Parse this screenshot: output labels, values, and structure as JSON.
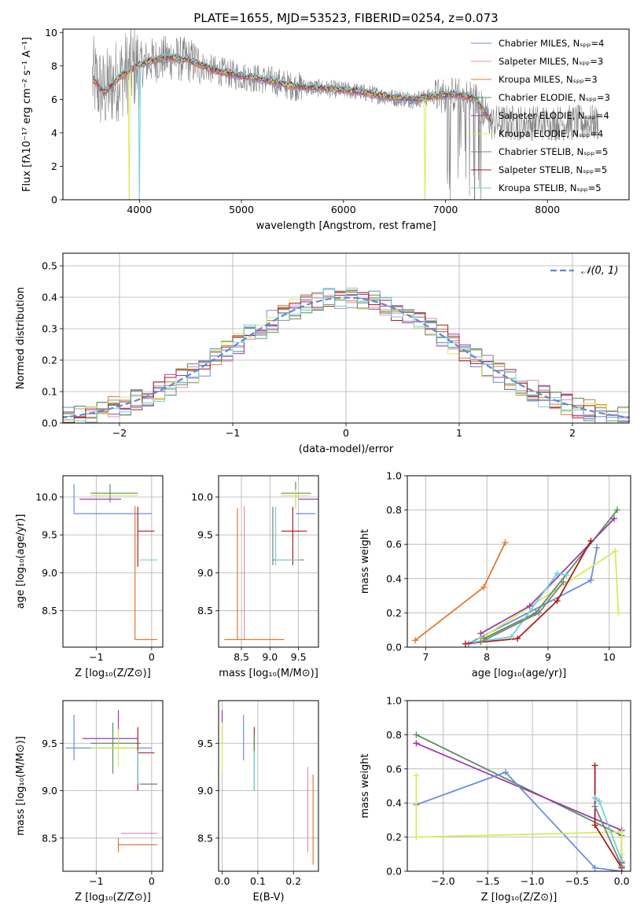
{
  "figure": {
    "title": "PLATE=1655, MJD=53523, FIBERID=0254, z=0.073"
  },
  "colors": {
    "blue": "#6a8fd9",
    "pink": "#e08cc0",
    "orange": "#e07a2e",
    "green": "#5a8f5a",
    "purple": "#a03ab0",
    "yellow": "#d7ea5a",
    "gray": "#7f7f7f",
    "red": "#aa1e1e",
    "cyan": "#6fd0d8",
    "spectrum": "#808080",
    "normal": "#5b8bd6"
  },
  "chart_data": [
    {
      "id": "spectrum",
      "type": "line",
      "xlabel": "wavelength [Angstrom, rest frame]",
      "ylabel": "Flux [fλ10⁻¹⁷ erg cm⁻² s⁻¹ A⁻¹]",
      "xlim": [
        3250,
        8800
      ],
      "ylim": [
        0,
        10.2
      ],
      "xticks": [
        "4000",
        "5000",
        "6000",
        "7000",
        "8000"
      ],
      "yticks": [
        "0",
        "2",
        "4",
        "6",
        "8",
        "10"
      ],
      "grid": false,
      "legend_position": "top-right",
      "legend": [
        "Chabrier MILES, Nₛₚₚ=4",
        "Salpeter MILES, Nₛₚₚ=3",
        "Kroupa MILES, Nₛₚₚ=3",
        "Chabrier ELODIE, Nₛₚₚ=3",
        "Salpeter ELODIE, Nₛₚₚ=4",
        "Kroupa ELODIE, Nₛₚₚ=4",
        "Chabrier STELIB, Nₛₚₚ=5",
        "Salpeter STELIB, Nₛₚₚ=5",
        "Kroupa STELIB, Nₛₚₚ=5"
      ],
      "model_continuum": {
        "x": [
          3550,
          3650,
          3800,
          3950,
          4100,
          4300,
          4500,
          4700,
          4900,
          5100,
          5300,
          5500,
          5700,
          5900,
          6100,
          6300,
          6500,
          6700,
          6900,
          7100,
          7300,
          7450
        ],
        "y": [
          7.2,
          6.4,
          7.3,
          7.9,
          8.3,
          8.5,
          8.3,
          7.8,
          7.5,
          7.3,
          7.1,
          6.8,
          6.7,
          6.6,
          6.5,
          6.3,
          6.1,
          6.0,
          6.2,
          6.3,
          6.0,
          4.6
        ]
      }
    },
    {
      "id": "residuals",
      "type": "histogram",
      "xlabel": "(data-model)/error",
      "ylabel": "Normed distribution",
      "xlim": [
        -2.5,
        2.5
      ],
      "ylim": [
        0,
        0.54
      ],
      "xticks": [
        "−2",
        "−1",
        "0",
        "1",
        "2"
      ],
      "yticks": [
        "0.0",
        "0.1",
        "0.2",
        "0.3",
        "0.4",
        "0.5"
      ],
      "grid": true,
      "legend_position": "top-right",
      "legend": [
        "𝒩(0, 1)"
      ],
      "bin_width": 0.1
    },
    {
      "id": "age_vs_Z",
      "type": "scatter",
      "xlabel": "Z [log₁₀(Z/Z⊙)]",
      "ylabel": "age  [log₁₀(age/yr)]",
      "xlim": [
        -1.6,
        0.2
      ],
      "ylim": [
        8.02,
        10.28
      ],
      "xticks": [
        "−1",
        "0"
      ],
      "yticks": [
        "8.5",
        "9.0",
        "9.5",
        "10.0"
      ],
      "grid": true,
      "points": [
        {
          "c": "blue",
          "x": -1.4,
          "xl": -1.4,
          "xh": 0.0,
          "y": 9.78,
          "yl": 9.78,
          "yh": 10.17
        },
        {
          "c": "purple",
          "x": -0.9,
          "xl": -1.3,
          "xh": -0.55,
          "y": 9.97,
          "yl": 9.97,
          "yh": 9.97
        },
        {
          "c": "green",
          "x": -0.75,
          "xl": -1.1,
          "xh": -0.25,
          "y": 10.05,
          "yl": 9.93,
          "yh": 10.17
        },
        {
          "c": "yellow",
          "x": -0.75,
          "xl": -1.1,
          "xh": -0.25,
          "y": 10.02,
          "yl": 10.02,
          "yh": 10.02
        },
        {
          "c": "red",
          "x": -0.25,
          "xl": -0.25,
          "xh": 0.05,
          "y": 9.55,
          "yl": 9.08,
          "yh": 9.87
        },
        {
          "c": "cyan",
          "x": -0.22,
          "xl": -0.22,
          "xh": 0.1,
          "y": 9.17,
          "yl": 9.17,
          "yh": 9.17
        },
        {
          "c": "orange",
          "x": -0.3,
          "xl": -0.3,
          "xh": 0.1,
          "y": 8.12,
          "yl": 8.12,
          "yh": 9.88
        }
      ]
    },
    {
      "id": "age_vs_mass",
      "type": "scatter",
      "xlabel": "mass [log₁₀(M/M⊙)]",
      "ylabel": "",
      "xlim": [
        8.1,
        9.85
      ],
      "ylim": [
        8.02,
        10.28
      ],
      "xticks": [
        "8.5",
        "9.0",
        "9.5"
      ],
      "yticks": [
        "8.5",
        "9.0",
        "9.5",
        "10.0"
      ],
      "grid": true,
      "points": [
        {
          "c": "blue",
          "x": 9.45,
          "xl": 9.45,
          "xh": 9.8,
          "y": 9.78,
          "yl": 9.78,
          "yh": 9.78
        },
        {
          "c": "purple",
          "x": 9.55,
          "xl": 9.5,
          "xh": 9.85,
          "y": 9.97,
          "yl": 9.97,
          "yh": 9.97
        },
        {
          "c": "green",
          "x": 9.45,
          "xl": 9.2,
          "xh": 9.72,
          "y": 10.05,
          "yl": 9.85,
          "yh": 10.2
        },
        {
          "c": "yellow",
          "x": 9.45,
          "xl": 9.2,
          "xh": 9.7,
          "y": 10.02,
          "yl": 9.85,
          "yh": 10.1
        },
        {
          "c": "gray",
          "x": 9.05,
          "xl": 9.05,
          "xh": 9.6,
          "y": 9.17,
          "yl": 9.1,
          "yh": 9.87
        },
        {
          "c": "red",
          "x": 9.4,
          "xl": 9.2,
          "xh": 9.65,
          "y": 9.55,
          "yl": 9.1,
          "yh": 9.87
        },
        {
          "c": "cyan",
          "x": 9.1,
          "xl": 9.1,
          "xh": 9.52,
          "y": 9.17,
          "yl": 9.1,
          "yh": 9.87
        },
        {
          "c": "pink",
          "x": 8.55,
          "xl": 8.55,
          "xh": 8.55,
          "y": 9.85,
          "yl": 8.12,
          "yh": 9.88
        },
        {
          "c": "orange",
          "x": 8.43,
          "xl": 8.2,
          "xh": 9.25,
          "y": 8.12,
          "yl": 8.12,
          "yh": 9.85
        }
      ]
    },
    {
      "id": "mass_weight_vs_age",
      "type": "line",
      "xlabel": "age  [log₁₀(age/yr)]",
      "ylabel": "mass weight",
      "xlim": [
        6.7,
        10.35
      ],
      "ylim": [
        0,
        1.0
      ],
      "xticks": [
        "7",
        "8",
        "9",
        "10"
      ],
      "yticks": [
        "0.0",
        "0.2",
        "0.4",
        "0.6",
        "0.8",
        "1.0"
      ],
      "grid": true,
      "series": [
        {
          "c": "orange",
          "x": [
            6.83,
            7.95,
            8.3
          ],
          "y": [
            0.04,
            0.35,
            0.61
          ]
        },
        {
          "c": "blue",
          "x": [
            7.7,
            9.7,
            9.8
          ],
          "y": [
            0.02,
            0.39,
            0.58
          ]
        },
        {
          "c": "yellow",
          "x": [
            7.9,
            10.1,
            10.15
          ],
          "y": [
            0.05,
            0.56,
            0.2
          ]
        },
        {
          "c": "green",
          "x": [
            7.95,
            8.8,
            10.13
          ],
          "y": [
            0.05,
            0.2,
            0.8
          ]
        },
        {
          "c": "purple",
          "x": [
            7.9,
            8.7,
            10.08
          ],
          "y": [
            0.08,
            0.24,
            0.75
          ]
        },
        {
          "c": "red",
          "x": [
            7.65,
            8.5,
            9.15,
            9.7
          ],
          "y": [
            0.02,
            0.05,
            0.27,
            0.62
          ]
        },
        {
          "c": "cyan",
          "x": [
            7.8,
            8.4,
            9.15,
            9.3
          ],
          "y": [
            0.03,
            0.06,
            0.43,
            0.42
          ]
        },
        {
          "c": "gray",
          "x": [
            7.9,
            8.85,
            9.25
          ],
          "y": [
            0.03,
            0.2,
            0.38
          ]
        }
      ]
    },
    {
      "id": "mass_vs_Z",
      "type": "scatter",
      "xlabel": "Z [log₁₀(Z/Z⊙)]",
      "ylabel": "mass [log₁₀(M/M⊙)]",
      "xlim": [
        -1.6,
        0.2
      ],
      "ylim": [
        8.15,
        9.95
      ],
      "xticks": [
        "−1",
        "0"
      ],
      "yticks": [
        "8.5",
        "9.0",
        "9.5"
      ],
      "grid": true,
      "points": [
        {
          "c": "blue",
          "x": -1.4,
          "xl": -1.55,
          "xh": 0.0,
          "y": 9.45,
          "yl": 9.32,
          "yh": 9.8
        },
        {
          "c": "purple",
          "x": -0.6,
          "xl": -1.25,
          "xh": -0.25,
          "y": 9.55,
          "yl": 9.5,
          "yh": 9.85
        },
        {
          "c": "green",
          "x": -0.7,
          "xl": -1.1,
          "xh": -0.2,
          "y": 9.5,
          "yl": 9.18,
          "yh": 9.72
        },
        {
          "c": "yellow",
          "x": -0.6,
          "xl": -1.1,
          "xh": -0.25,
          "y": 9.45,
          "yl": 9.25,
          "yh": 9.65
        },
        {
          "c": "red",
          "x": -0.25,
          "xl": -0.25,
          "xh": 0.05,
          "y": 9.4,
          "yl": 9.0,
          "yh": 9.67
        },
        {
          "c": "cyan",
          "x": -0.25,
          "xl": -0.25,
          "xh": 0.1,
          "y": 9.07,
          "yl": 9.07,
          "yh": 9.42
        },
        {
          "c": "gray",
          "x": -0.2,
          "xl": -0.2,
          "xh": 0.1,
          "y": 9.07,
          "yl": 9.07,
          "yh": 9.07
        },
        {
          "c": "pink",
          "x": -0.55,
          "xl": -0.55,
          "xh": 0.1,
          "y": 8.55,
          "yl": 8.55,
          "yh": 8.55
        },
        {
          "c": "orange",
          "x": -0.6,
          "xl": -0.6,
          "xh": 0.1,
          "y": 8.43,
          "yl": 8.35,
          "yh": 8.5
        }
      ]
    },
    {
      "id": "mass_vs_EBV",
      "type": "scatter",
      "xlabel": "E(B-V)",
      "ylabel": "",
      "xlim": [
        -0.01,
        0.27
      ],
      "ylim": [
        8.15,
        9.95
      ],
      "xticks": [
        "0.0",
        "0.1",
        "0.2"
      ],
      "yticks": [
        "8.5",
        "9.0",
        "9.5"
      ],
      "grid": true,
      "vlines": [
        {
          "c": "purple",
          "x": 0.0,
          "yl": 9.5,
          "yh": 9.85
        },
        {
          "c": "yellow",
          "x": 0.0,
          "yl": 9.2,
          "yh": 9.72
        },
        {
          "c": "blue",
          "x": 0.06,
          "yl": 9.32,
          "yh": 9.8
        },
        {
          "c": "red",
          "x": 0.09,
          "yl": 9.4,
          "yh": 9.67
        },
        {
          "c": "green",
          "x": 0.09,
          "yl": 9.0,
          "yh": 9.6
        },
        {
          "c": "cyan",
          "x": 0.09,
          "yl": 9.0,
          "yh": 9.42
        },
        {
          "c": "pink",
          "x": 0.24,
          "yl": 8.35,
          "yh": 9.25
        },
        {
          "c": "orange",
          "x": 0.255,
          "yl": 8.22,
          "yh": 9.17
        }
      ]
    },
    {
      "id": "mass_weight_vs_Z",
      "type": "line",
      "xlabel": "Z [log₁₀(Z/Z⊙)]",
      "ylabel": "mass weight",
      "xlim": [
        -2.4,
        0.1
      ],
      "ylim": [
        0,
        1.0
      ],
      "xticks": [
        "−2.0",
        "−1.5",
        "−1.0",
        "−0.5",
        "0.0"
      ],
      "yticks": [
        "0.0",
        "0.2",
        "0.4",
        "0.6",
        "0.8",
        "1.0"
      ],
      "grid": true,
      "series": [
        {
          "c": "green",
          "x": [
            -2.3,
            0.0,
            0.0
          ],
          "y": [
            0.8,
            0.21,
            0.05
          ]
        },
        {
          "c": "purple",
          "x": [
            -2.3,
            0.0,
            0.0
          ],
          "y": [
            0.75,
            0.24,
            0.02
          ]
        },
        {
          "c": "blue",
          "x": [
            -2.3,
            -1.3,
            -0.3,
            0.0
          ],
          "y": [
            0.39,
            0.58,
            0.02,
            0.0
          ]
        },
        {
          "c": "yellow",
          "x": [
            -2.3,
            -2.3,
            0.0,
            0.0
          ],
          "y": [
            0.56,
            0.2,
            0.23,
            0.1
          ]
        },
        {
          "c": "red",
          "x": [
            -0.3,
            -0.3,
            0.0,
            0.0
          ],
          "y": [
            0.62,
            0.27,
            0.02,
            0.05
          ]
        },
        {
          "c": "cyan",
          "x": [
            -0.3,
            -0.25,
            0.0
          ],
          "y": [
            0.43,
            0.41,
            0.06
          ]
        },
        {
          "c": "gray",
          "x": [
            -0.3,
            0.0
          ],
          "y": [
            0.38,
            0.03
          ]
        }
      ]
    }
  ]
}
